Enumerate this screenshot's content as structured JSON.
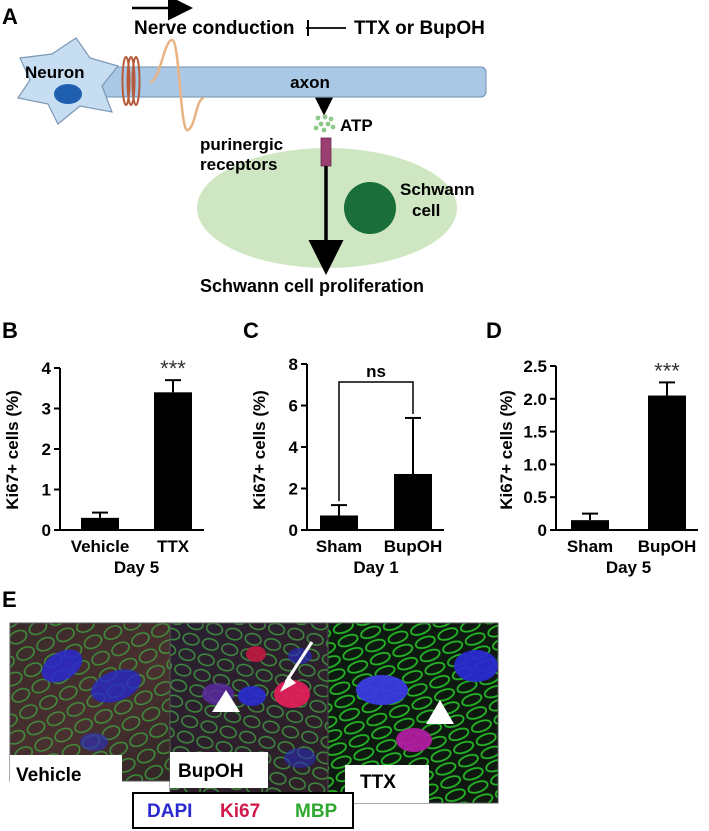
{
  "panel_a": {
    "label": "A",
    "nerve_conduction": "Nerve conduction",
    "blocker": "TTX or BupOH",
    "neuron": "Neuron",
    "axon": "axon",
    "atp": "ATP",
    "receptors_line1": "purinergic",
    "receptors_line2": "receptors",
    "schwann_line1": "Schwann",
    "schwann_line2": "cell",
    "outcome": "Schwann cell proliferation",
    "colors": {
      "neuron": "#c7ddf2",
      "axon": "#a9c8e6",
      "schwann": "#cfe6c2",
      "nucleus_schwann": "#1a6e3a",
      "nucleus_neuron": "#1f5fb0",
      "receptor": "#9b3f72",
      "atp": "#8fc98a"
    }
  },
  "chart_data": [
    {
      "panel": "B",
      "type": "bar",
      "ylabel": "Ki67+ cells (%)",
      "xlabel": "Day 5",
      "categories": [
        "Vehicle",
        "TTX"
      ],
      "values": [
        0.3,
        3.4
      ],
      "errors": [
        0.13,
        0.3
      ],
      "ylim": [
        0,
        4
      ],
      "yticks": [
        "0",
        "1",
        "2",
        "3",
        "4"
      ],
      "significance": "***"
    },
    {
      "panel": "C",
      "type": "bar",
      "ylabel": "Ki67+ cells (%)",
      "xlabel": "Day 1",
      "categories": [
        "Sham",
        "BupOH"
      ],
      "values": [
        0.7,
        2.7
      ],
      "errors": [
        0.5,
        2.7
      ],
      "ylim": [
        0,
        8
      ],
      "yticks": [
        "0",
        "2",
        "4",
        "6",
        "8"
      ],
      "significance": "ns"
    },
    {
      "panel": "D",
      "type": "bar",
      "ylabel": "Ki67+ cells (%)",
      "xlabel": "Day 5",
      "categories": [
        "Sham",
        "BupOH"
      ],
      "values": [
        0.15,
        2.05
      ],
      "errors": [
        0.1,
        0.2
      ],
      "ylim": [
        0,
        2.5
      ],
      "yticks": [
        "0",
        "0.5",
        "1.0",
        "1.5",
        "2.0",
        "2.5"
      ],
      "significance": "***"
    }
  ],
  "panel_e": {
    "label": "E",
    "images": [
      "Vehicle",
      "BupOH",
      "TTX"
    ],
    "legend": {
      "dapi": "DAPI",
      "ki67": "Ki67",
      "mbp": "MBP"
    },
    "colors": {
      "dapi": "#2a2ad0",
      "ki67": "#d01a4a",
      "mbp": "#2fa82f"
    }
  }
}
